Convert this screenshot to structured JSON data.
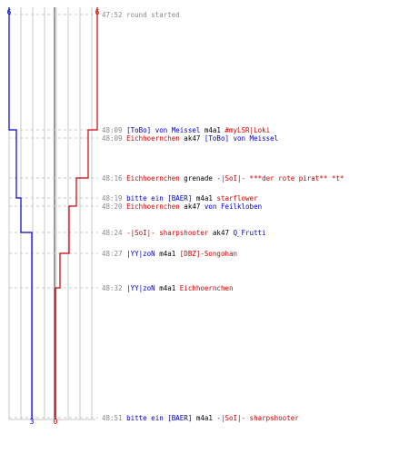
{
  "axis": {
    "top_left": "6",
    "top_right": "6",
    "bottom_left": "3",
    "bottom_right": "0"
  },
  "colors": {
    "blue": "#0000cc",
    "red": "#cc0000",
    "grid": "#c8c8c8",
    "time": "#888888",
    "text": "#000000"
  },
  "events": [
    {
      "time": "47:52",
      "parts": [
        {
          "text": "round started",
          "c": "time"
        }
      ]
    },
    {
      "time": "48:09",
      "parts": [
        {
          "text": "[ToBo] von Meissel",
          "c": "blue"
        },
        {
          "text": " m4a1 ",
          "c": "text"
        },
        {
          "text": "#myLSR|Loki",
          "c": "red"
        }
      ]
    },
    {
      "time": "48:09",
      "parts": [
        {
          "text": "Eichhoernchen",
          "c": "red"
        },
        {
          "text": " ak47 ",
          "c": "text"
        },
        {
          "text": "[ToBo] von Meissel",
          "c": "blue"
        }
      ]
    },
    {
      "time": "48:16",
      "parts": [
        {
          "text": "Eichhoernchen",
          "c": "red"
        },
        {
          "text": " grenade ",
          "c": "text"
        },
        {
          "text": "-|SoI|- ***der rote pirat** *t*",
          "c": "red"
        }
      ]
    },
    {
      "time": "48:19",
      "parts": [
        {
          "text": "bitte ein [BAER]",
          "c": "blue"
        },
        {
          "text": " m4a1 ",
          "c": "text"
        },
        {
          "text": "starflower",
          "c": "red"
        }
      ]
    },
    {
      "time": "48:20",
      "parts": [
        {
          "text": "Eichhoernchen",
          "c": "red"
        },
        {
          "text": " ak47 ",
          "c": "text"
        },
        {
          "text": "von Feilkloben",
          "c": "blue"
        }
      ]
    },
    {
      "time": "48:24",
      "parts": [
        {
          "text": "-|SoI|- sharpshooter",
          "c": "red"
        },
        {
          "text": " ak47 ",
          "c": "text"
        },
        {
          "text": "Q_Frutti",
          "c": "blue"
        }
      ]
    },
    {
      "time": "48:27",
      "parts": [
        {
          "text": "|YY|zoN",
          "c": "blue"
        },
        {
          "text": " m4a1 ",
          "c": "text"
        },
        {
          "text": "[DBZ]-Songohan",
          "c": "red"
        }
      ]
    },
    {
      "time": "48:32",
      "parts": [
        {
          "text": "|YY|zoN",
          "c": "blue"
        },
        {
          "text": " m4a1 ",
          "c": "text"
        },
        {
          "text": "Eichhoernchen",
          "c": "red"
        }
      ]
    },
    {
      "time": "48:51",
      "parts": [
        {
          "text": "bitte ein [BAER]",
          "c": "blue"
        },
        {
          "text": " m4a1 ",
          "c": "text"
        },
        {
          "text": "-|SoI|- sharpshooter",
          "c": "red"
        }
      ]
    }
  ]
}
